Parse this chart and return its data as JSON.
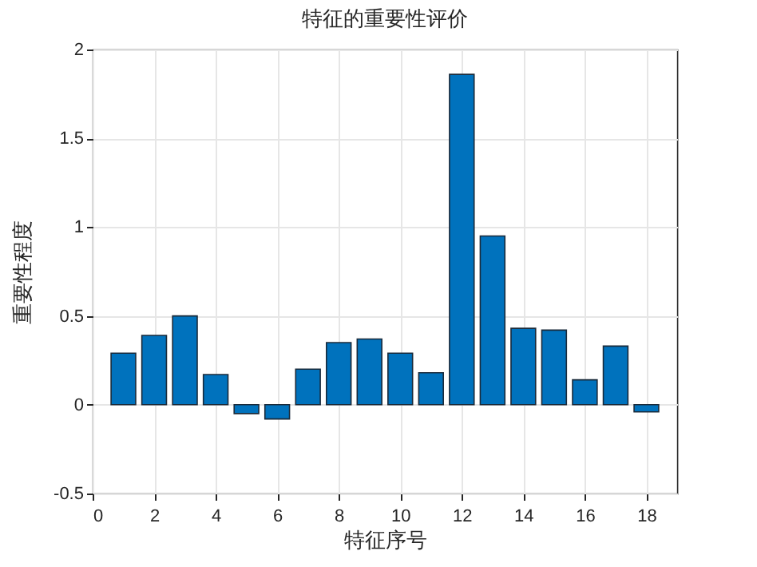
{
  "chart_data": {
    "type": "bar",
    "title": "特征的重要性评价",
    "xlabel": "特征序号",
    "ylabel": "重要性程度",
    "x": [
      1,
      2,
      3,
      4,
      5,
      6,
      7,
      8,
      9,
      10,
      11,
      12,
      13,
      14,
      15,
      16,
      17,
      18
    ],
    "values": [
      0.29,
      0.39,
      0.5,
      0.17,
      -0.05,
      -0.08,
      0.2,
      0.35,
      0.37,
      0.29,
      0.18,
      1.86,
      0.95,
      0.43,
      0.42,
      0.14,
      0.33,
      -0.04
    ],
    "color": "#0072bd",
    "xlim": [
      0,
      19
    ],
    "xticks": [
      0,
      2,
      4,
      6,
      8,
      10,
      12,
      14,
      16,
      18
    ],
    "ylim": [
      -0.5,
      2
    ],
    "yticks": [
      -0.5,
      0,
      0.5,
      1,
      1.5,
      2
    ],
    "grid": true
  }
}
